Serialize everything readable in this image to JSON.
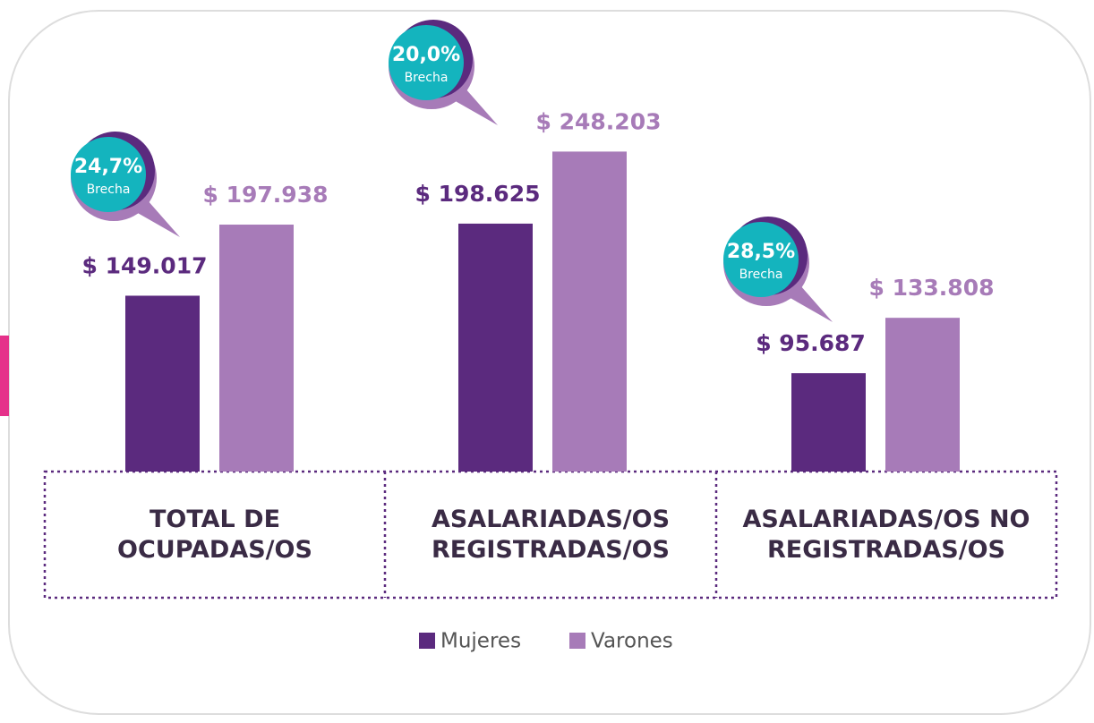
{
  "chart_data": {
    "type": "bar",
    "categories": [
      "TOTAL DE OCUPADAS/OS",
      "ASALARIADAS/OS REGISTRADAS/OS",
      "ASALARIADAS/OS NO REGISTRADAS/OS"
    ],
    "series": [
      {
        "name": "Mujeres",
        "color": "#5b2a7e",
        "values": [
          149017,
          198625,
          95687
        ],
        "value_labels": [
          "$ 149.017",
          "$ 198.625",
          "$ 95.687"
        ]
      },
      {
        "name": "Varones",
        "color": "#a77bb8",
        "values": [
          197938,
          248203,
          133808
        ],
        "value_labels": [
          "$ 197.938",
          "$ 248.203",
          "$ 133.808"
        ]
      }
    ],
    "gap_labels": [
      "24,7%",
      "20,0%",
      "28,5%"
    ],
    "gap_caption": "Brecha",
    "ylim": [
      28000,
      270000
    ]
  }
}
